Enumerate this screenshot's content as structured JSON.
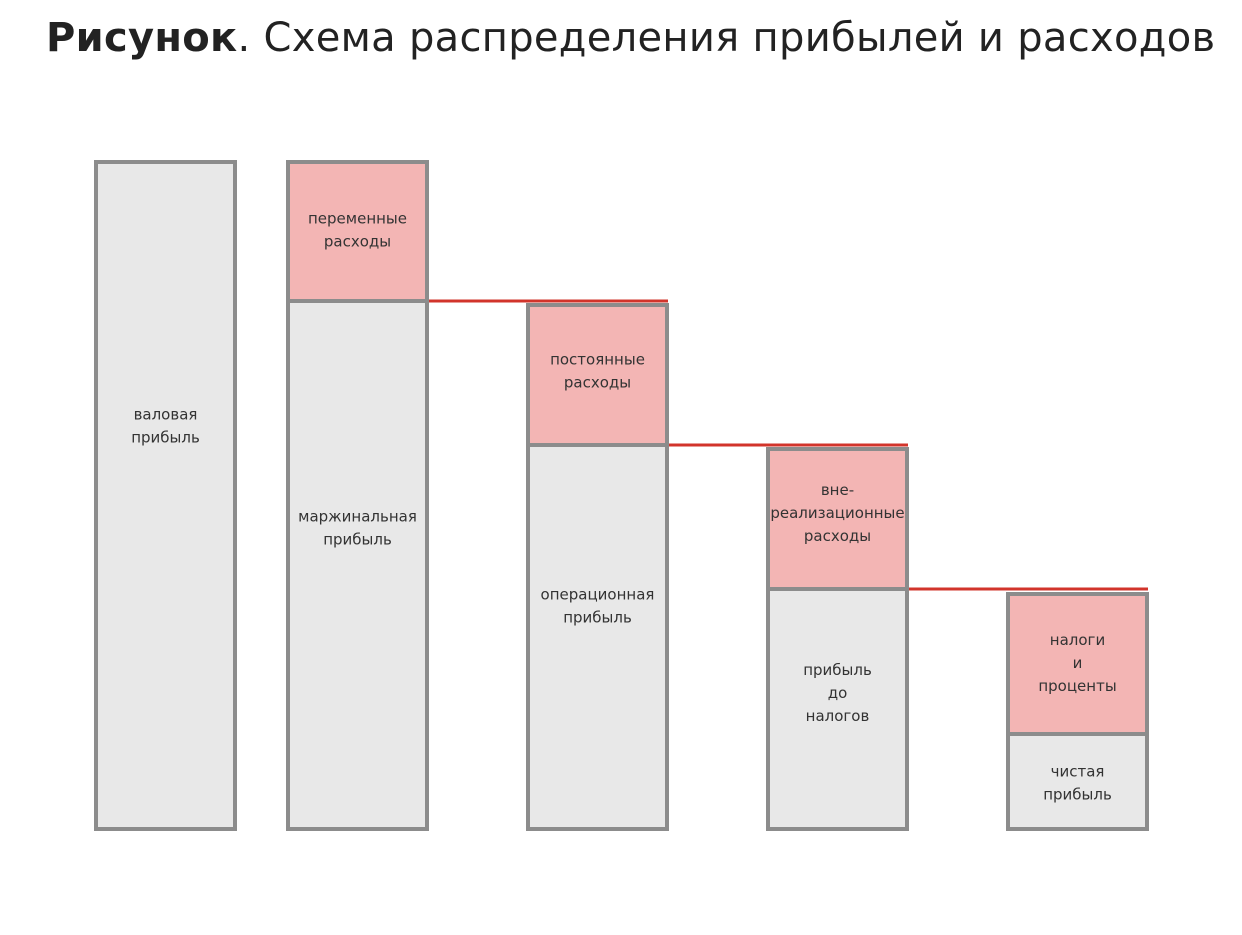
{
  "title": {
    "bold": "Рисунок",
    "rest": ". Схема распределения прибылей и расходов"
  },
  "blocks": [
    {
      "kind": "profit",
      "lines": [
        "валовая",
        "прибыль"
      ]
    },
    {
      "kind": "expense",
      "lines": [
        "переменные",
        "расходы"
      ]
    },
    {
      "kind": "profit",
      "lines": [
        "маржинальная",
        "прибыль"
      ]
    },
    {
      "kind": "expense",
      "lines": [
        "постоянные",
        "расходы"
      ]
    },
    {
      "kind": "profit",
      "lines": [
        "операционная",
        "прибыль"
      ]
    },
    {
      "kind": "expense",
      "lines": [
        "вне-",
        "реализационные",
        "расходы"
      ]
    },
    {
      "kind": "profit",
      "lines": [
        "прибыль",
        "до",
        "налогов"
      ]
    },
    {
      "kind": "expense",
      "lines": [
        "налоги",
        "и",
        "проценты"
      ]
    },
    {
      "kind": "profit",
      "lines": [
        "чистая",
        "прибыль"
      ]
    }
  ],
  "colors": {
    "profit_fill": "#e8e8e8",
    "expense_fill": "#f3b5b4",
    "border": "#8c8c8c",
    "connector": "#d2342b"
  }
}
